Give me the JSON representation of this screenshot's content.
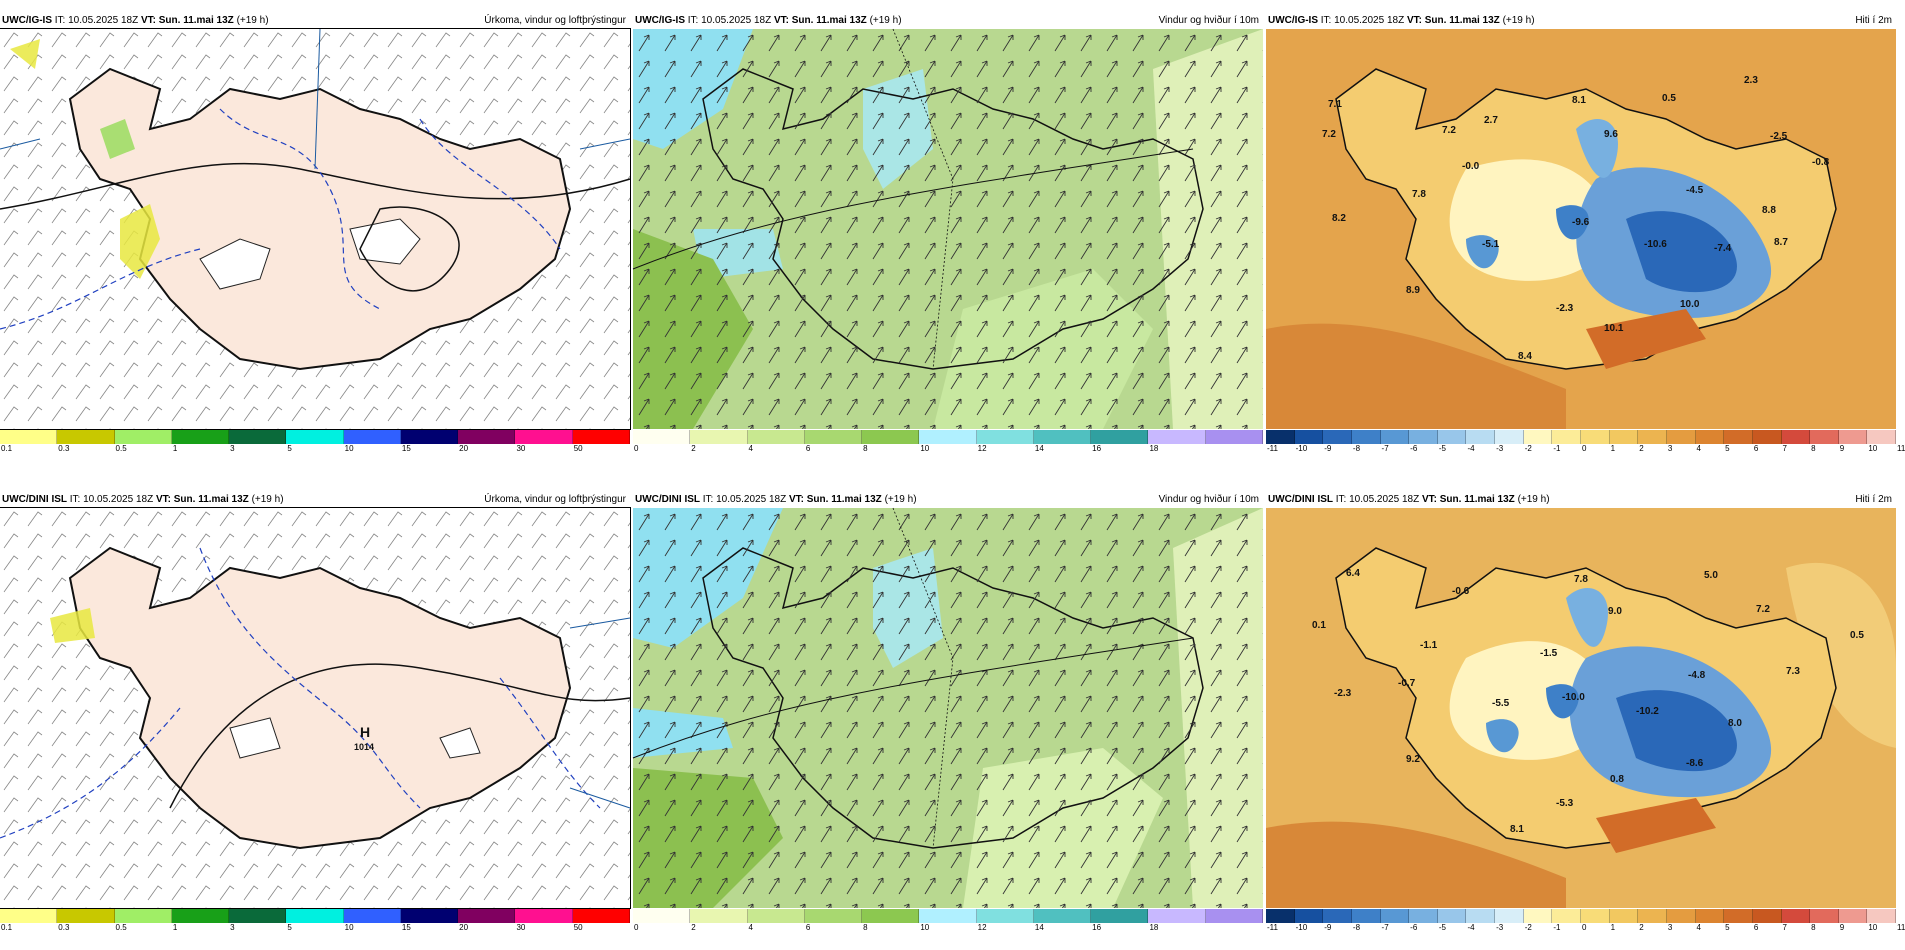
{
  "rows": [
    {
      "model": "UWC/IG-IS",
      "it": "IT: 10.05.2025 18Z",
      "vt": "VT: Sun. 11.mai 13Z",
      "lead": "(+19 h)",
      "panels": {
        "precip": {
          "title": "Úrkoma, vindur og loftþrýstingur"
        },
        "wind": {
          "title": "Vindur og hviður í 10m"
        },
        "temp": {
          "title": "Hiti í 2m",
          "labels": [
            "7.1",
            "7.2",
            "7.2",
            "2.7",
            "8.1",
            "0.5",
            "2.3",
            "-0.0",
            "9.6",
            "-2.5",
            "-0.8",
            "7.8",
            "-4.5",
            "8.8",
            "8.2",
            "-5.1",
            "-9.6",
            "-10.6",
            "-7.4",
            "8.7",
            "8.9",
            "-2.3",
            "10.0",
            "10.1",
            "8.4"
          ]
        }
      }
    },
    {
      "model": "UWC/DINI ISL",
      "it": "IT: 10.05.2025 18Z",
      "vt": "VT: Sun. 11.mai 13Z",
      "lead": "(+19 h)",
      "panels": {
        "precip": {
          "title": "Úrkoma, vindur og loftþrýstingur",
          "high_symbol": "H",
          "high_value": "1014"
        },
        "wind": {
          "title": "Vindur og hviður í 10m"
        },
        "temp": {
          "title": "Hiti í 2m",
          "labels": [
            "6.4",
            "-0.6",
            "7.8",
            "5.0",
            "0.1",
            "9.0",
            "7.2",
            "-1.1",
            "-1.5",
            "0.5",
            "-0.7",
            "-4.8",
            "7.3",
            "-2.3",
            "-5.5",
            "-10.0",
            "-10.2",
            "8.0",
            "9.2",
            "-8.6",
            "0.8",
            "-5.3",
            "8.1"
          ]
        }
      }
    }
  ],
  "scales": {
    "precip": {
      "colors": [
        "#ffff88",
        "#c8c800",
        "#a0ee66",
        "#18a018",
        "#0a6a3a",
        "#00f0e0",
        "#3060ff",
        "#000070",
        "#800060",
        "#ff1090",
        "#ff0000"
      ],
      "ticks": [
        "0.1",
        "0.3",
        "0.5",
        "1",
        "3",
        "5",
        "10",
        "15",
        "20",
        "30",
        "50"
      ]
    },
    "wind": {
      "colors": [
        "#fffff0",
        "#e8f6b0",
        "#c8e890",
        "#a8d870",
        "#8cc850",
        "#b0f0ff",
        "#80e0e0",
        "#50c0c0",
        "#30a0a0",
        "#c8b8ff",
        "#a890f0"
      ],
      "ticks": [
        "0",
        "2",
        "4",
        "6",
        "8",
        "10",
        "12",
        "14",
        "16",
        "18"
      ]
    },
    "temp": {
      "colors": [
        "#08306b",
        "#1650a0",
        "#2a68b8",
        "#3e80c8",
        "#5898d4",
        "#78b0e0",
        "#98c6ea",
        "#b8dcf2",
        "#d8eef8",
        "#fff8c0",
        "#fcec98",
        "#f8dc78",
        "#f2c860",
        "#ecb450",
        "#e49c40",
        "#dc8430",
        "#d26c28",
        "#c85820",
        "#d44a3c",
        "#e26a5c",
        "#ee9a90",
        "#f6c8c0"
      ],
      "ticks": [
        "-11",
        "-10",
        "-9",
        "-8",
        "-7",
        "-6",
        "-5",
        "-4",
        "-3",
        "-2",
        "-1",
        "0",
        "1",
        "2",
        "3",
        "4",
        "5",
        "6",
        "7",
        "8",
        "9",
        "10",
        "11"
      ]
    }
  }
}
